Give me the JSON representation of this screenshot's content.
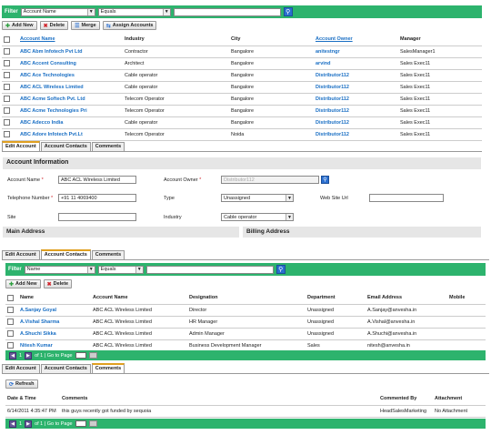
{
  "top_filter": {
    "label": "Filter",
    "field": "Account Name",
    "operator": "Equals",
    "value": ""
  },
  "toolbar": {
    "add": "Add New",
    "delete": "Delete",
    "merge": "Merge",
    "assign": "Assign Accounts"
  },
  "accounts": {
    "headers": [
      "Account Name",
      "Industry",
      "City",
      "Account Owner",
      "Manager"
    ],
    "rows": [
      [
        "ABC Abm Infotech Pvt Ltd",
        "Contractor",
        "Bangalore",
        "anitestngr",
        "SalesManager1"
      ],
      [
        "ABC Accent Consulting",
        "Architect",
        "Bangalore",
        "arvind",
        "Sales Exec11"
      ],
      [
        "ABC Ace Technologies",
        "Cable operator",
        "Bangalore",
        "Distributor112",
        "Sales Exec11"
      ],
      [
        "ABC ACL Wireless Limited",
        "Cable operator",
        "Bangalore",
        "Distributor112",
        "Sales Exec11"
      ],
      [
        "ABC Acme Softech Pvt. Ltd",
        "Telecom Operator",
        "Bangalore",
        "Distributor112",
        "Sales Exec11"
      ],
      [
        "ABC Acme Technologies Pri",
        "Telecom Operator",
        "Bangalore",
        "Distributor112",
        "Sales Exec11"
      ],
      [
        "ABC Adecco India",
        "Cable operator",
        "Bangalore",
        "Distributor112",
        "Sales Exec11"
      ],
      [
        "ABC Adore Infotech Pvt.Lt",
        "Telecom Operator",
        "Noida",
        "Distributor112",
        "Sales Exec11"
      ]
    ]
  },
  "edit_tabs": [
    "Edit Account",
    "Account Contacts",
    "Comments"
  ],
  "account_info": {
    "title": "Account Information",
    "name_label": "Account Name",
    "name_value": "ABC ACL Wireless Limited",
    "owner_label": "Account Owner",
    "owner_value": "Distributor112",
    "phone_label": "Telephone Number",
    "phone_value": "+91 11 4069400",
    "type_label": "Type",
    "type_value": "Unassigned",
    "web_label": "Web Site Url",
    "site_label": "Site",
    "industry_label": "Industry",
    "industry_value": "Cable operator",
    "main_address": "Main Address",
    "billing_address": "Billing Address",
    "required_mark": "*"
  },
  "contacts": {
    "tabs": [
      "Edit Account",
      "Account Contacts",
      "Comments"
    ],
    "filter": {
      "label": "Filter",
      "field": "Name",
      "operator": "Equals"
    },
    "add": "Add New",
    "delete": "Delete",
    "headers": [
      "Name",
      "Account Name",
      "Designation",
      "Department",
      "Email Address",
      "Mobile"
    ],
    "rows": [
      [
        "A.Sanjay Goyal",
        "ABC ACL Wireless Limited",
        "Director",
        "Unassigned",
        "A.Sanjay@anvesha.in",
        ""
      ],
      [
        "A.Vishal Sharma",
        "ABC ACL Wireless Limited",
        "HR Manager",
        "Unassigned",
        "A.Vishal@anvesha.in",
        ""
      ],
      [
        "A.Shuchi Sikka",
        "ABC ACL Wireless Limited",
        "Admin Manager",
        "Unassigned",
        "A.Shuchi@anvesha.in",
        ""
      ],
      [
        "Nitesh Kumar",
        "ABC ACL Wireless Limited",
        "Business Development Manager",
        "Sales",
        "nitesh@anvesha.in",
        ""
      ]
    ],
    "pager": {
      "page": "1",
      "of": "of 1",
      "goto": "Go to Page"
    }
  },
  "comments": {
    "tabs": [
      "Edit Account",
      "Account Contacts",
      "Comments"
    ],
    "refresh": "Refresh",
    "headers": [
      "Date & Time",
      "Comments",
      "Commented By",
      "Attachment"
    ],
    "rows": [
      [
        "6/14/2011 4:35:47 PM",
        "this guys recently got funded by sequoia",
        "HeadSalesMarketing",
        "No Attachment"
      ]
    ],
    "pager": {
      "page": "1",
      "of": "of 1",
      "goto": "Go to Page"
    }
  },
  "colors": {
    "accent_green": "#2db36d",
    "link_blue": "#1a6fc4",
    "active_tab": "#e0a020"
  }
}
